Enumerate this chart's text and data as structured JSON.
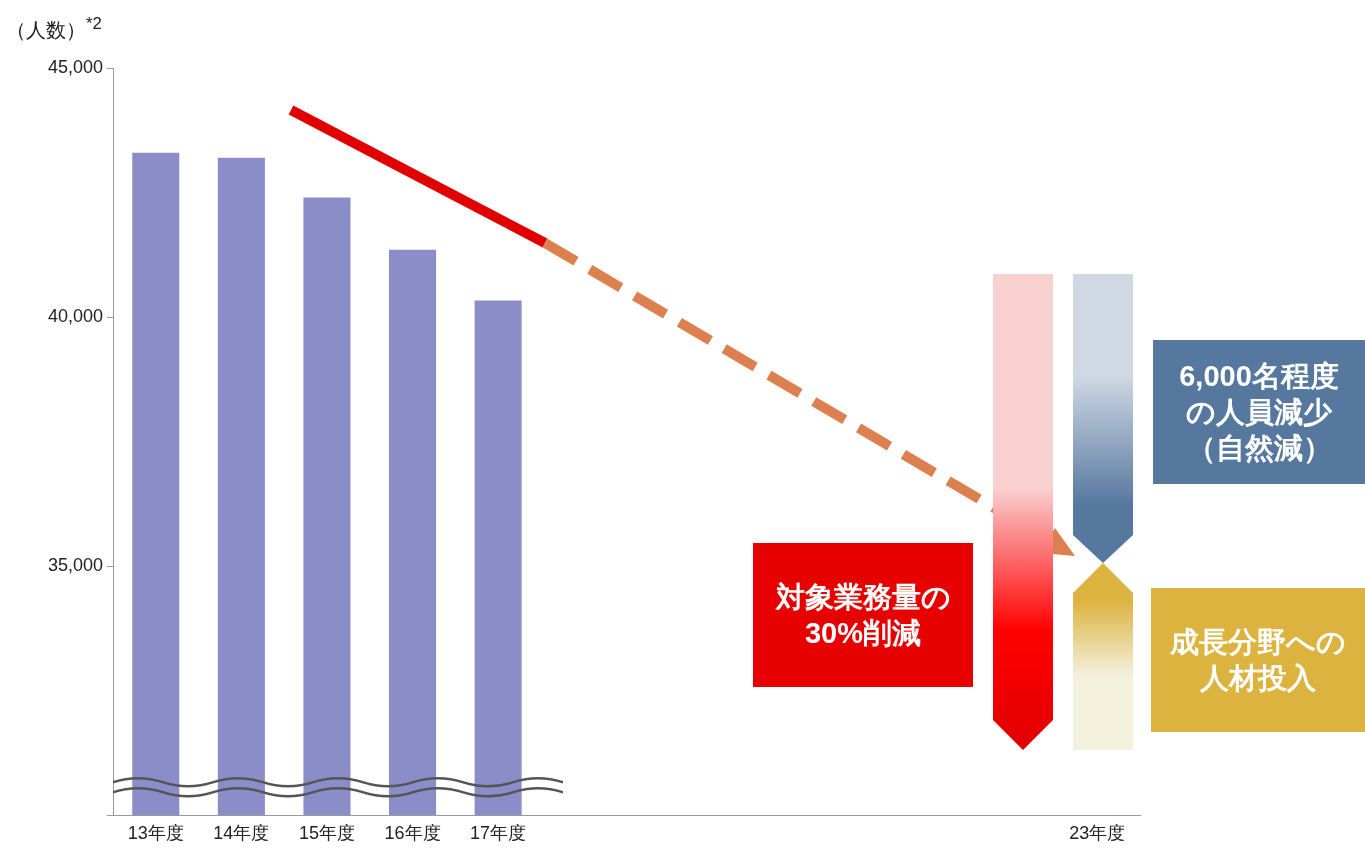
{
  "chart_data": {
    "type": "bar",
    "ylabel": "（人数）$^{*2}$",
    "categories": [
      "13年度",
      "14年度",
      "15年度",
      "16年度",
      "17年度",
      null,
      null,
      null,
      null,
      null,
      null,
      "23年度"
    ],
    "values": [
      43300,
      43200,
      42400,
      41350,
      40330,
      null,
      null,
      null,
      null,
      null,
      null,
      null
    ],
    "color": "#8b8dc8",
    "ylim": [
      30000,
      45000
    ],
    "yticks": [
      {
        "value": 30000,
        "label": null
      },
      {
        "value": 35000,
        "label": "35,000"
      },
      {
        "value": 40000,
        "label": "40,000"
      },
      {
        "value": 45000,
        "label": "45,000"
      }
    ],
    "grid": false,
    "annotations": [
      "対象業務量の30%削減",
      "6,000名程度の人員減少（自然減）",
      "成長分野への人材投入"
    ]
  }
}
